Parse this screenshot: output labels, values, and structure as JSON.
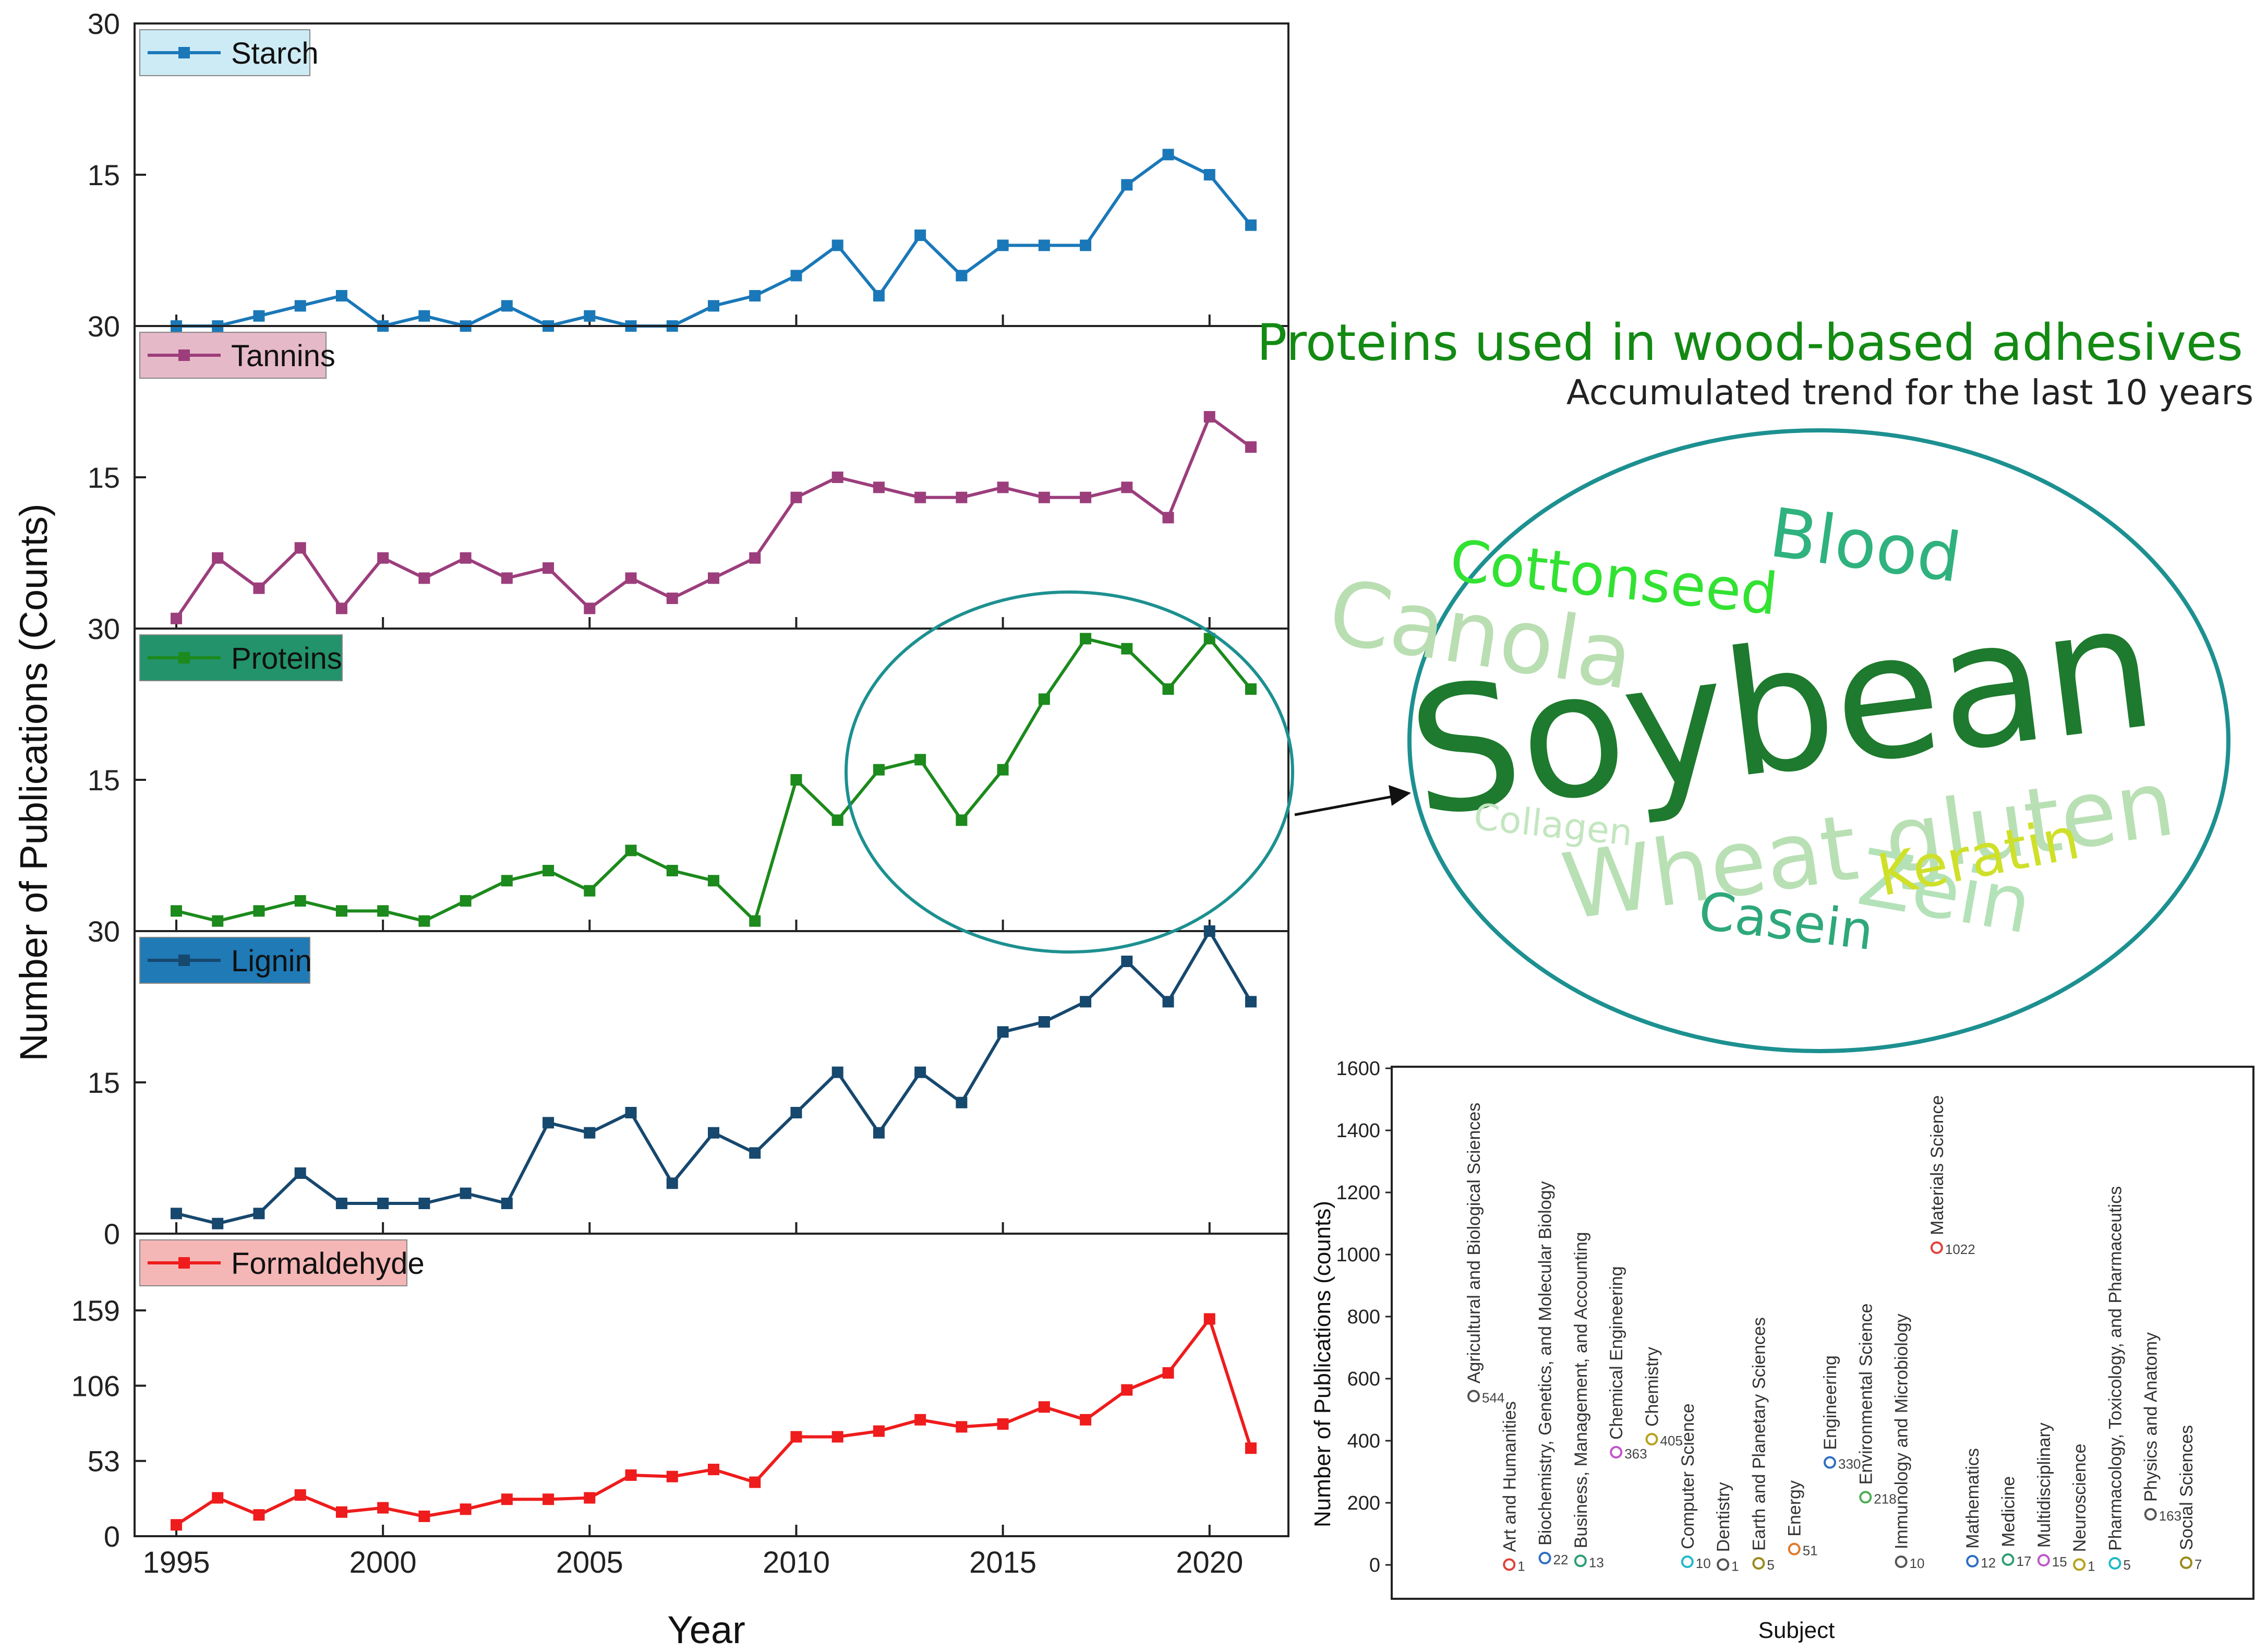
{
  "chart_data": [
    {
      "type": "line",
      "xlabel": "Year",
      "ylabel": "Number of Publications (Counts)",
      "x": [
        1995,
        1996,
        1997,
        1998,
        1999,
        2000,
        2001,
        2002,
        2003,
        2004,
        2005,
        2006,
        2007,
        2008,
        2009,
        2010,
        2011,
        2012,
        2013,
        2014,
        2015,
        2016,
        2017,
        2018,
        2019,
        2020,
        2021
      ],
      "x_ticks": [
        "1995",
        "2000",
        "2005",
        "2010",
        "2015",
        "2020"
      ],
      "panels": [
        {
          "name": "Starch",
          "color": "#1a78b8",
          "legend_bg": "#cdebf5",
          "ylim": [
            0,
            30
          ],
          "y_ticks": [
            "30",
            "15"
          ],
          "values": [
            0,
            0,
            1,
            2,
            3,
            0,
            1,
            0,
            2,
            0,
            1,
            0,
            0,
            2,
            3,
            5,
            8,
            3,
            9,
            5,
            8,
            8,
            8,
            14,
            17,
            15,
            10
          ]
        },
        {
          "name": "Tannins",
          "color": "#9c3e7c",
          "legend_bg": "#e6b9c8",
          "ylim": [
            0,
            30
          ],
          "y_ticks": [
            "30",
            "15"
          ],
          "values": [
            1,
            7,
            4,
            8,
            2,
            7,
            5,
            7,
            5,
            6,
            2,
            5,
            3,
            5,
            7,
            13,
            15,
            14,
            13,
            13,
            14,
            13,
            13,
            14,
            11,
            21,
            18
          ]
        },
        {
          "name": "Proteins",
          "color": "#1c8a1c",
          "legend_bg": "#23936b",
          "ylim": [
            0,
            30
          ],
          "y_ticks": [
            "30",
            "15"
          ],
          "values": [
            2,
            1,
            2,
            3,
            2,
            2,
            1,
            3,
            5,
            6,
            4,
            8,
            6,
            5,
            1,
            15,
            11,
            16,
            17,
            11,
            16,
            23,
            29,
            28,
            24,
            29,
            24
          ]
        },
        {
          "name": "Lignin",
          "color": "#17486e",
          "legend_bg": "#1f7ab6",
          "ylim": [
            0,
            30
          ],
          "y_ticks": [
            "30",
            "15",
            "0"
          ],
          "values": [
            2,
            1,
            2,
            6,
            3,
            3,
            3,
            4,
            3,
            11,
            10,
            12,
            5,
            10,
            8,
            12,
            16,
            10,
            16,
            13,
            20,
            21,
            23,
            27,
            23,
            30,
            23
          ]
        },
        {
          "name": "Formaldehyde",
          "color": "#ee1c1c",
          "legend_bg": "#f5b6b6",
          "ylim": [
            0,
            180
          ],
          "y_ticks": [
            "159",
            "106",
            "53",
            "0"
          ],
          "values": [
            8,
            27,
            15,
            29,
            17,
            20,
            14,
            19,
            26,
            26,
            27,
            43,
            42,
            47,
            38,
            70,
            70,
            74,
            82,
            77,
            79,
            91,
            82,
            103,
            115,
            153,
            62
          ]
        }
      ]
    },
    {
      "type": "scatter",
      "xlabel": "Subject",
      "ylabel": "Number of Publications (counts)",
      "ylim": [
        0,
        1600
      ],
      "y_ticks": [
        "1600",
        "1400",
        "1200",
        "1000",
        "800",
        "600",
        "400",
        "200",
        "0"
      ],
      "points": [
        {
          "subject": "Agricultural and Biological Sciences",
          "value": 544,
          "label": "544",
          "color": "#555555"
        },
        {
          "subject": "Art and Humanities",
          "value": 1,
          "label": "1",
          "color": "#e0413a"
        },
        {
          "subject": "Biochemistry, Genetics, and Molecular Biology",
          "value": 22,
          "label": "22",
          "color": "#2d6fc2"
        },
        {
          "subject": "Business, Management, and Accounting",
          "value": 13,
          "label": "13",
          "color": "#2e9e72"
        },
        {
          "subject": "Chemical Engineering",
          "value": 363,
          "label": "363",
          "color": "#c056c8"
        },
        {
          "subject": "Chemistry",
          "value": 405,
          "label": "405",
          "color": "#b7a21d"
        },
        {
          "subject": "Computer Science",
          "value": 10,
          "label": "10",
          "color": "#1fb9c9"
        },
        {
          "subject": "Dentistry",
          "value": 1,
          "label": "1",
          "color": "#555555"
        },
        {
          "subject": "Earth and Planetary Sciences",
          "value": 5,
          "label": "5",
          "color": "#9a8a1a"
        },
        {
          "subject": "Energy",
          "value": 51,
          "label": "51",
          "color": "#e07a2a"
        },
        {
          "subject": "Engineering",
          "value": 330,
          "label": "330",
          "color": "#2d6fc2"
        },
        {
          "subject": "Environmental Science",
          "value": 218,
          "label": "218",
          "color": "#4caf50"
        },
        {
          "subject": "Immunology and Microbiology",
          "value": 10,
          "label": "10",
          "color": "#555555"
        },
        {
          "subject": "Materials Science",
          "value": 1022,
          "label": "1022",
          "color": "#e0413a"
        },
        {
          "subject": "Mathematics",
          "value": 12,
          "label": "12",
          "color": "#2d6fc2"
        },
        {
          "subject": "Medicine",
          "value": 17,
          "label": "17",
          "color": "#2e9e72"
        },
        {
          "subject": "Multidisciplinary",
          "value": 15,
          "label": "15",
          "color": "#c056c8"
        },
        {
          "subject": "Neuroscience",
          "value": 1,
          "label": "1",
          "color": "#b7a21d"
        },
        {
          "subject": "Pharmacology, Toxicology, and Pharmaceutics",
          "value": 5,
          "label": "5",
          "color": "#1fb9c9"
        },
        {
          "subject": "Physics and Anatomy",
          "value": 163,
          "label": "163",
          "color": "#555555"
        },
        {
          "subject": "Social Sciences",
          "value": 7,
          "label": "7",
          "color": "#9a8a1a"
        }
      ]
    }
  ],
  "wordcloud": {
    "title": "Proteins used in wood-based adhesives",
    "subtitle": "Accumulated trend for the last 10 years",
    "title_color": "#138a13",
    "ellipse_color": "#1d9090",
    "words": [
      {
        "text": "Soybean",
        "color": "#1e7a2e"
      },
      {
        "text": "Wheat gluten",
        "color": "#b8e0b4"
      },
      {
        "text": "Canola",
        "color": "#b9deb2"
      },
      {
        "text": "Cottonseed",
        "color": "#32e232"
      },
      {
        "text": "Blood",
        "color": "#2fb27e"
      },
      {
        "text": "Zein",
        "color": "#b4e2b8"
      },
      {
        "text": "Keratin",
        "color": "#cfe02a"
      },
      {
        "text": "Casein",
        "color": "#2ea87a"
      },
      {
        "text": "Collagen",
        "color": "#c3e6c0"
      }
    ]
  }
}
